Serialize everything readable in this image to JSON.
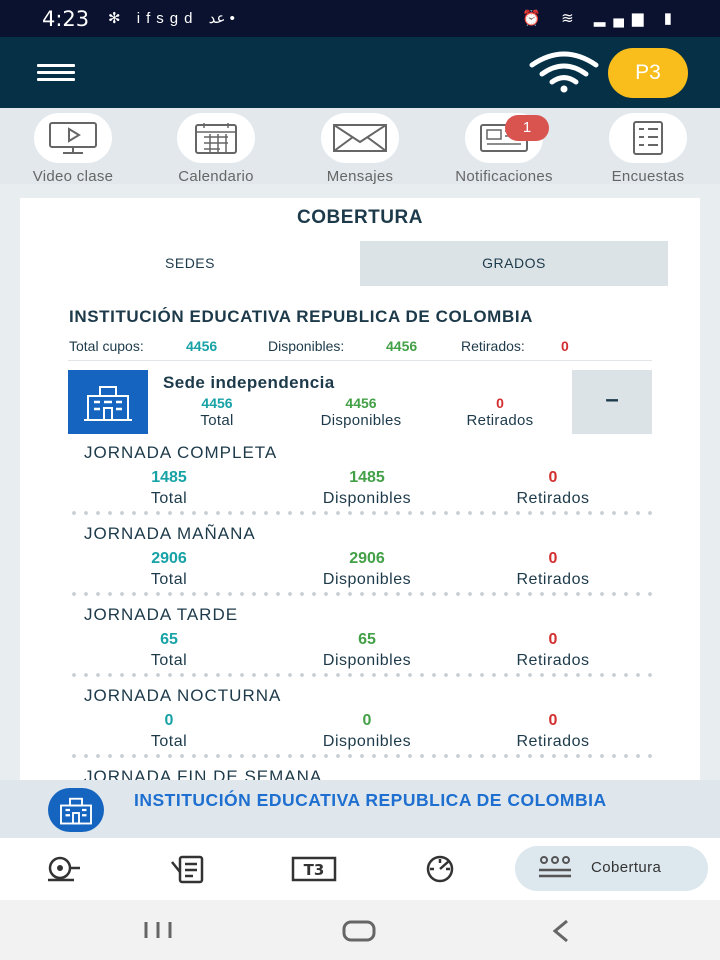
{
  "status_bar": {
    "time": "4:23",
    "notification_icons": "✻ ifsgd عد •",
    "right_icons": "⏰ ≋ ▂▄▆ ▮"
  },
  "header": {
    "avatar_initials": "P3"
  },
  "shortcuts": [
    {
      "label": "Video clase",
      "icon": "video-class-icon"
    },
    {
      "label": "Calendario",
      "icon": "calendar-icon"
    },
    {
      "label": "Mensajes",
      "icon": "envelope-icon"
    },
    {
      "label": "Notificaciones",
      "icon": "newspaper-icon",
      "badge": "1"
    },
    {
      "label": "Encuestas",
      "icon": "survey-icon"
    }
  ],
  "cobertura": {
    "title": "COBERTURA",
    "tabs": [
      "SEDES",
      "GRADOS"
    ],
    "institution": "INSTITUCIÓN EDUCATIVA REPUBLICA DE COLOMBIA",
    "summary": {
      "total_label": "Total cupos:",
      "total": "4456",
      "disponibles_label": "Disponibles:",
      "disponibles": "4456",
      "retirados_label": "Retirados:",
      "retirados": "0"
    },
    "sede": {
      "name": "Sede independencia",
      "total": "4456",
      "total_label": "Total",
      "disponibles": "4456",
      "disponibles_label": "Disponibles",
      "retirados": "0",
      "retirados_label": "Retirados",
      "collapse": "–"
    },
    "jornadas": [
      {
        "name": "JORNADA COMPLETA",
        "total": "1485",
        "disponibles": "1485",
        "retirados": "0"
      },
      {
        "name": "JORNADA MAÑANA",
        "total": "2906",
        "disponibles": "2906",
        "retirados": "0"
      },
      {
        "name": "JORNADA TARDE",
        "total": "65",
        "disponibles": "65",
        "retirados": "0"
      },
      {
        "name": "JORNADA NOCTURNA",
        "total": "0",
        "disponibles": "0",
        "retirados": "0"
      },
      {
        "name": "JORNADA FIN DE SEMANA",
        "total": "",
        "disponibles": "",
        "retirados": ""
      }
    ],
    "labels": {
      "total": "Total",
      "disponibles": "Disponibles",
      "retirados": "Retirados"
    }
  },
  "footer": {
    "institution": "INSTITUCIÓN EDUCATIVA REPUBLICA DE COLOMBIA"
  },
  "bottom_nav": {
    "items": [
      "bell-icon",
      "clipboard-icon",
      "t3-icon",
      "gauge-icon"
    ],
    "active_label": "Cobertura",
    "active_icon": "people-icon"
  },
  "colors": {
    "header": "#063046",
    "accent": "#f9bd1c",
    "teal": "#17a2a6",
    "green": "#43a047",
    "red": "#d32f2f",
    "blue": "#1565c0"
  }
}
